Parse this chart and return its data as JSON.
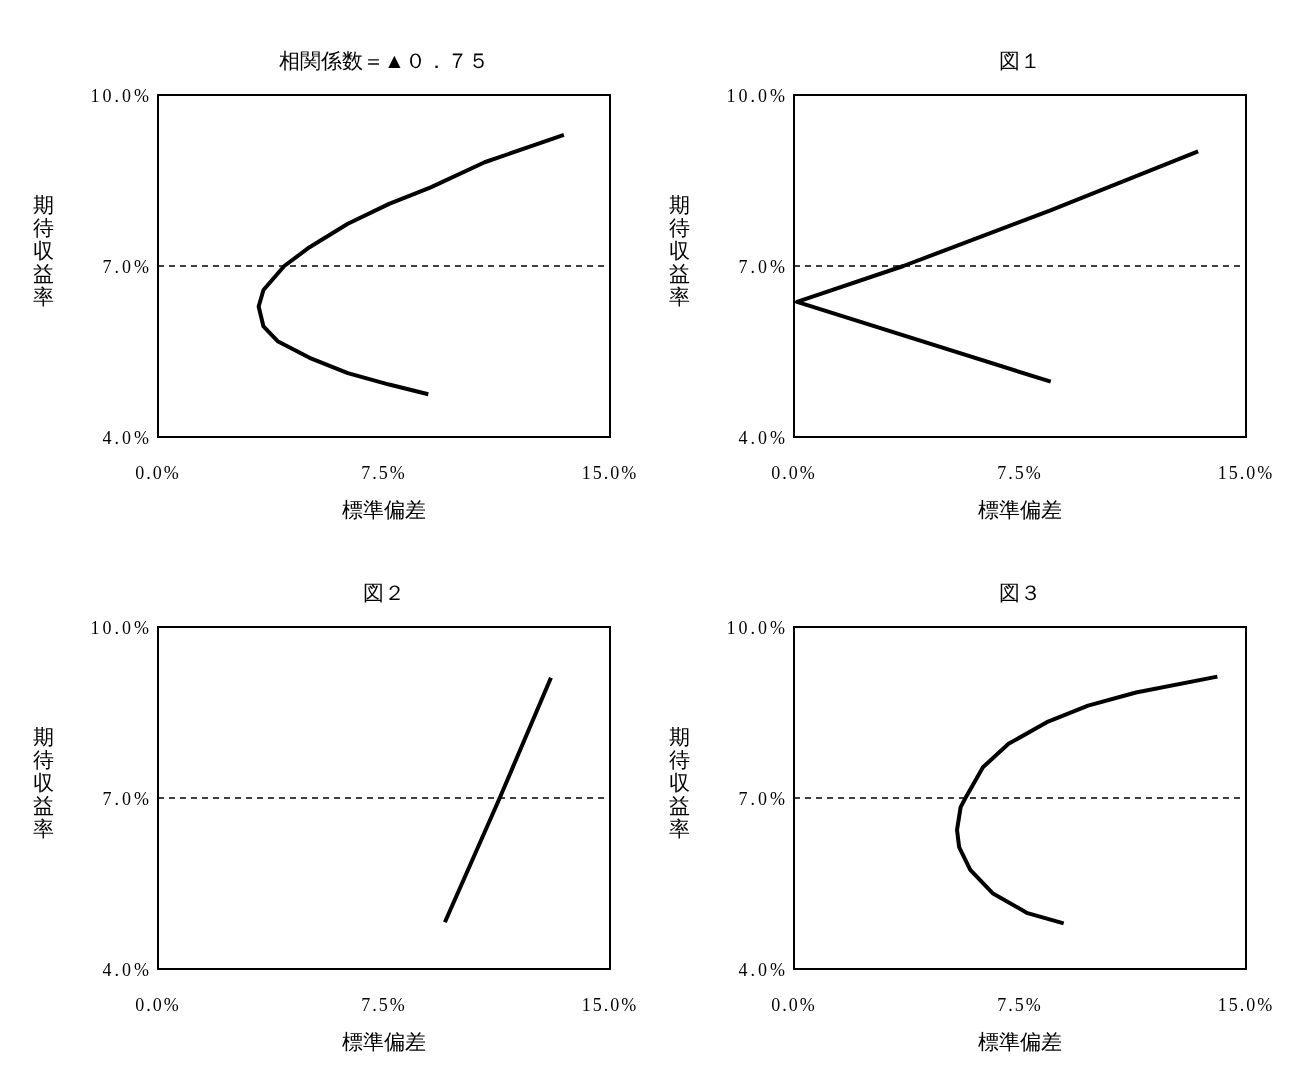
{
  "chart_data": [
    {
      "type": "line",
      "title": "相関係数＝▲０．７５",
      "xlabel": "標準偏差",
      "ylabel": "期待収益率",
      "xlim": [
        0,
        15
      ],
      "ylim": [
        4,
        10
      ],
      "xticks": [
        {
          "value": 0,
          "label": "0.0%"
        },
        {
          "value": 7.5,
          "label": "7.5%"
        },
        {
          "value": 15,
          "label": "15.0%"
        }
      ],
      "yticks": [
        {
          "value": 4,
          "label": "4.0%"
        },
        {
          "value": 7,
          "label": "7.0%"
        },
        {
          "value": 10,
          "label": "10.0%"
        }
      ],
      "ref_lines": [
        {
          "axis": "y",
          "value": 7,
          "line_style": "dashed",
          "color": "#000000"
        }
      ],
      "series": [
        {
          "color": "#000000",
          "x": [
            8.97,
            7.67,
            6.3,
            5.03,
            3.97,
            3.5,
            3.34,
            3.5,
            4.19,
            5.03,
            6.3,
            7.67,
            9.05,
            10.84,
            13.47
          ],
          "values": [
            4.75,
            4.92,
            5.12,
            5.39,
            5.68,
            5.94,
            6.29,
            6.58,
            7.0,
            7.33,
            7.74,
            8.09,
            8.38,
            8.82,
            9.3
          ]
        }
      ]
    },
    {
      "type": "line",
      "title": "図１",
      "xlabel": "標準偏差",
      "ylabel": "期待収益率",
      "xlim": [
        0,
        15
      ],
      "ylim": [
        4,
        10
      ],
      "xticks": [
        {
          "value": 0,
          "label": "0.0%"
        },
        {
          "value": 7.5,
          "label": "7.5%"
        },
        {
          "value": 15,
          "label": "15.0%"
        }
      ],
      "yticks": [
        {
          "value": 4,
          "label": "4.0%"
        },
        {
          "value": 7,
          "label": "7.0%"
        },
        {
          "value": 10,
          "label": "10.0%"
        }
      ],
      "ref_lines": [
        {
          "axis": "y",
          "value": 7,
          "line_style": "dashed",
          "color": "#000000"
        }
      ],
      "series": [
        {
          "color": "#000000",
          "x": [
            8.52,
            0.1,
            3.63,
            8.49,
            13.41
          ],
          "values": [
            4.97,
            6.37,
            7.0,
            7.97,
            9.01
          ]
        }
      ]
    },
    {
      "type": "line",
      "title": "図２",
      "xlabel": "標準偏差",
      "ylabel": "期待収益率",
      "xlim": [
        0,
        15
      ],
      "ylim": [
        4,
        10
      ],
      "xticks": [
        {
          "value": 0,
          "label": "0.0%"
        },
        {
          "value": 7.5,
          "label": "7.5%"
        },
        {
          "value": 15,
          "label": "15.0%"
        }
      ],
      "yticks": [
        {
          "value": 4,
          "label": "4.0%"
        },
        {
          "value": 7,
          "label": "7.0%"
        },
        {
          "value": 10,
          "label": "10.0%"
        }
      ],
      "ref_lines": [
        {
          "axis": "y",
          "value": 7,
          "line_style": "dashed",
          "color": "#000000"
        }
      ],
      "series": [
        {
          "color": "#000000",
          "x": [
            9.52,
            11.34,
            13.04
          ],
          "values": [
            4.82,
            7.0,
            9.11
          ]
        }
      ]
    },
    {
      "type": "line",
      "title": "図３",
      "xlabel": "標準偏差",
      "ylabel": "期待収益率",
      "xlim": [
        0,
        15
      ],
      "ylim": [
        4,
        10
      ],
      "xticks": [
        {
          "value": 0,
          "label": "0.0%"
        },
        {
          "value": 7.5,
          "label": "7.5%"
        },
        {
          "value": 15,
          "label": "15.0%"
        }
      ],
      "yticks": [
        {
          "value": 4,
          "label": "4.0%"
        },
        {
          "value": 7,
          "label": "7.0%"
        },
        {
          "value": 10,
          "label": "10.0%"
        }
      ],
      "ref_lines": [
        {
          "axis": "y",
          "value": 7,
          "line_style": "dashed",
          "color": "#000000"
        }
      ],
      "series": [
        {
          "color": "#000000",
          "x": [
            8.95,
            7.75,
            6.59,
            5.85,
            5.48,
            5.41,
            5.53,
            5.69,
            6.27,
            7.12,
            8.39,
            9.76,
            11.35,
            14.05
          ],
          "values": [
            4.8,
            4.98,
            5.33,
            5.74,
            6.14,
            6.44,
            6.84,
            7.0,
            7.54,
            7.95,
            8.33,
            8.62,
            8.85,
            9.13
          ]
        }
      ]
    }
  ]
}
